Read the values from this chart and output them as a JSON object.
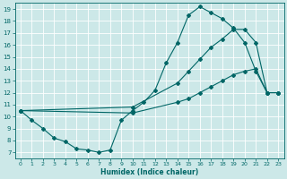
{
  "xlabel": "Humidex (Indice chaleur)",
  "bg_color": "#cce8e8",
  "grid_color": "#ffffff",
  "line_color": "#006666",
  "xlim": [
    -0.5,
    23.5
  ],
  "ylim": [
    6.5,
    19.5
  ],
  "xticks": [
    0,
    1,
    2,
    3,
    4,
    5,
    6,
    7,
    8,
    9,
    10,
    11,
    12,
    13,
    14,
    15,
    16,
    17,
    18,
    19,
    20,
    21,
    22,
    23
  ],
  "yticks": [
    7,
    8,
    9,
    10,
    11,
    12,
    13,
    14,
    15,
    16,
    17,
    18,
    19
  ],
  "line1_x": [
    0,
    1,
    2,
    3,
    4,
    5,
    6,
    7,
    8,
    9,
    10,
    11,
    12,
    13,
    14,
    15,
    16,
    17,
    18,
    19,
    20,
    21,
    22,
    23
  ],
  "line1_y": [
    10.5,
    9.7,
    9.0,
    8.2,
    7.9,
    7.3,
    7.2,
    7.0,
    7.2,
    9.7,
    10.5,
    11.2,
    12.2,
    14.5,
    16.2,
    18.5,
    19.2,
    18.7,
    18.2,
    17.4,
    16.2,
    13.8,
    12.0,
    12.0
  ],
  "line2_x": [
    0,
    10,
    14,
    15,
    16,
    17,
    18,
    19,
    20,
    21,
    22,
    23
  ],
  "line2_y": [
    10.5,
    10.8,
    12.8,
    13.8,
    14.8,
    15.8,
    16.5,
    17.3,
    17.3,
    16.2,
    12.0,
    12.0
  ],
  "line3_x": [
    0,
    10,
    14,
    15,
    16,
    17,
    18,
    19,
    20,
    21,
    22,
    23
  ],
  "line3_y": [
    10.5,
    10.3,
    11.2,
    11.5,
    12.0,
    12.5,
    13.0,
    13.5,
    13.8,
    14.0,
    12.0,
    12.0
  ]
}
